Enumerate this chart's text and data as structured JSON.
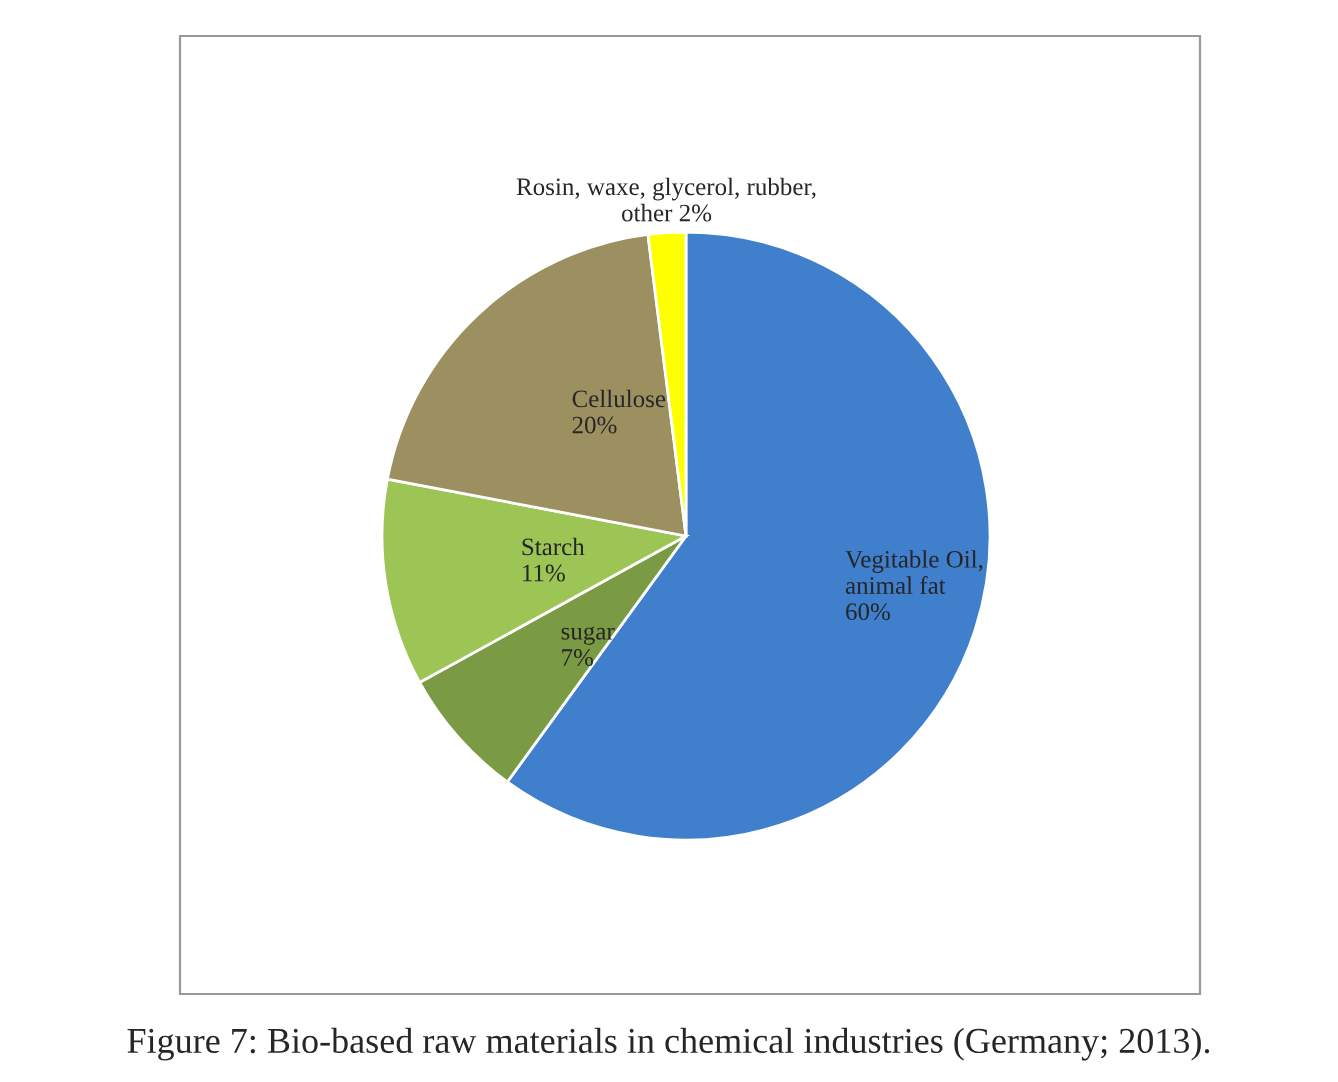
{
  "chart_data": {
    "type": "pie",
    "title": "Figure 7: Bio-based raw materials in chemical industries (Germany; 2013).",
    "categories": [
      "Vegitable Oil,\nanimal fat",
      "sugar",
      "Starch",
      "Cellulose",
      "Rosin, waxe, glycerol, rubber,\nother"
    ],
    "values": [
      60,
      7,
      11,
      20,
      2
    ],
    "colors": [
      "#3f7fcc",
      "#7a9a44",
      "#9cc555",
      "#9c9060",
      "#ffff00"
    ],
    "value_labels": [
      "60%",
      "7%",
      "11%",
      "20%",
      "2%"
    ]
  }
}
